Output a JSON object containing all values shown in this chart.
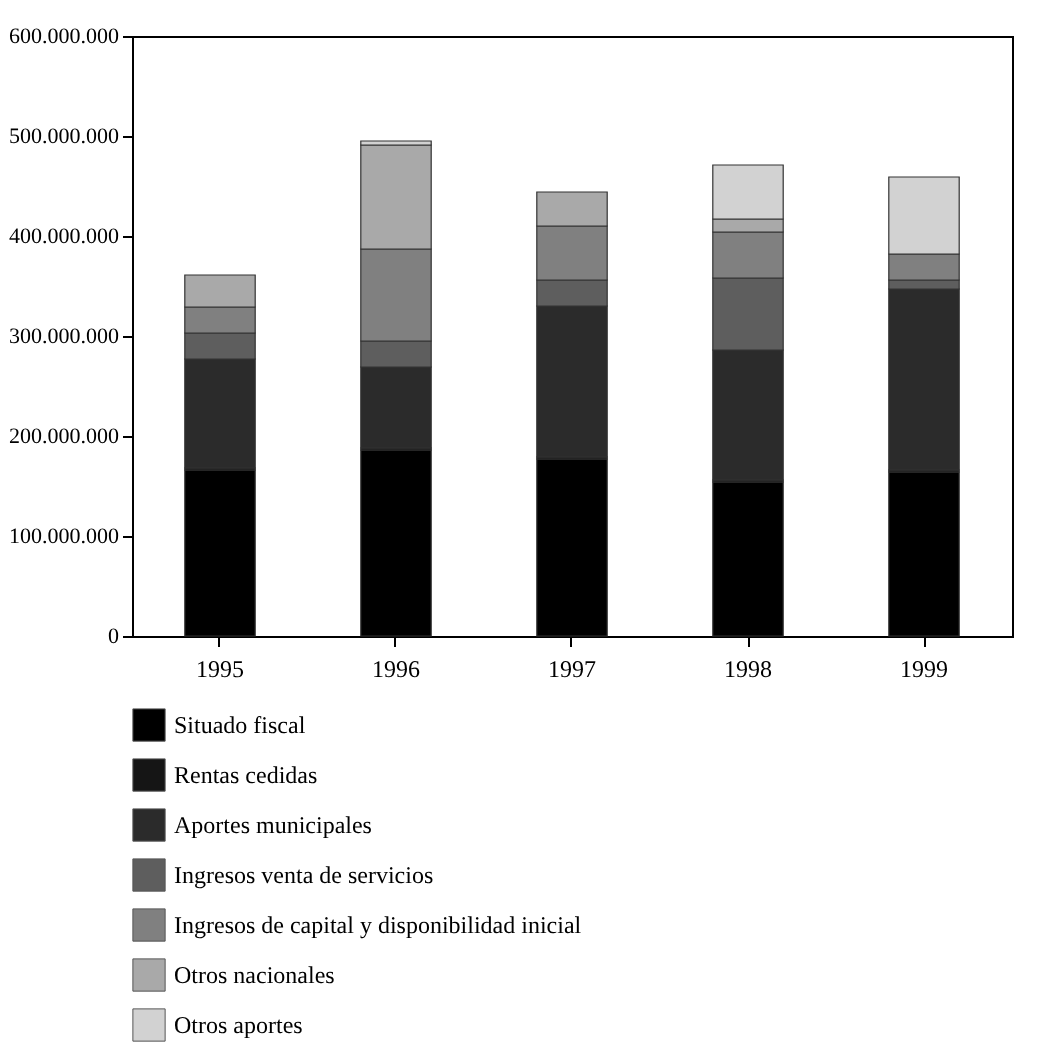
{
  "chart_data": {
    "type": "bar",
    "stacked": true,
    "categories": [
      "1995",
      "1996",
      "1997",
      "1998",
      "1999"
    ],
    "series": [
      {
        "name": "Situado fiscal",
        "color": "#000000",
        "values": [
          166000000,
          186000000,
          177000000,
          154000000,
          164000000
        ]
      },
      {
        "name": "Rentas cedidas",
        "color": "#151515",
        "values": [
          2000000,
          2000000,
          2000000,
          2000000,
          2000000
        ]
      },
      {
        "name": "Aportes municipales",
        "color": "#2b2b2b",
        "values": [
          109000000,
          81000000,
          151000000,
          130000000,
          181000000
        ]
      },
      {
        "name": "Ingresos venta de servicios",
        "color": "#5e5e5e",
        "values": [
          26000000,
          26000000,
          26000000,
          72000000,
          9000000
        ]
      },
      {
        "name": "Ingresos de capital y disponibilidad inicial",
        "color": "#808080",
        "values": [
          26000000,
          92000000,
          54000000,
          46000000,
          26000000
        ]
      },
      {
        "name": "Otros nacionales",
        "color": "#a9a9a9",
        "values": [
          32000000,
          104000000,
          34000000,
          13000000,
          null
        ]
      },
      {
        "name": "Otros aportes",
        "color": "#d2d2d2",
        "values": [
          null,
          4000000,
          null,
          54000000,
          77000000
        ]
      }
    ],
    "ylim": [
      0,
      600000000
    ],
    "yticks": [
      0,
      {
        "value": 100000000,
        "label": "100.000.000"
      },
      {
        "value": 200000000,
        "label": "200.000.000"
      },
      {
        "value": 300000000,
        "label": "300.000.000"
      },
      {
        "value": 400000000,
        "label": "400.000.000"
      },
      {
        "value": 500000000,
        "label": "500.000.000"
      },
      {
        "value": 600000000,
        "label": "600.000.000"
      }
    ],
    "grid": false,
    "legend": "bottom"
  }
}
